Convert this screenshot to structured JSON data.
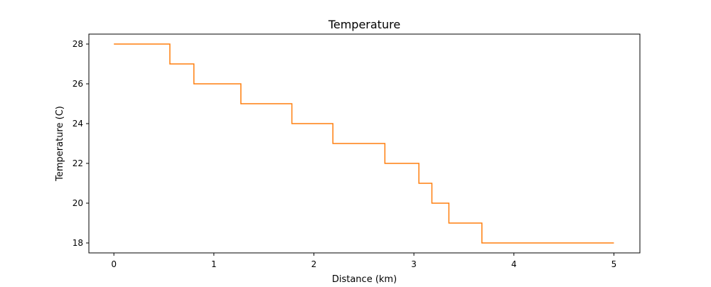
{
  "chart_data": {
    "type": "line",
    "title": "Temperature",
    "xlabel": "Distance (km)",
    "ylabel": "Temperature (C)",
    "xlim": [
      -0.25,
      5.26
    ],
    "ylim": [
      17.5,
      28.5
    ],
    "x_ticks": [
      0,
      1,
      2,
      3,
      4,
      5
    ],
    "x_tick_labels": [
      "0",
      "1",
      "2",
      "3",
      "4",
      "5"
    ],
    "y_ticks": [
      18,
      20,
      22,
      24,
      26,
      28
    ],
    "y_tick_labels": [
      "18",
      "20",
      "22",
      "24",
      "26",
      "28"
    ],
    "grid": false,
    "series": [
      {
        "color": "#ff7f0e",
        "points": [
          [
            0.0,
            28
          ],
          [
            0.56,
            28
          ],
          [
            0.56,
            27
          ],
          [
            0.8,
            27
          ],
          [
            0.8,
            26
          ],
          [
            1.27,
            26
          ],
          [
            1.27,
            25
          ],
          [
            1.78,
            25
          ],
          [
            1.78,
            24
          ],
          [
            2.19,
            24
          ],
          [
            2.19,
            23
          ],
          [
            2.71,
            23
          ],
          [
            2.71,
            22
          ],
          [
            3.05,
            22
          ],
          [
            3.05,
            21
          ],
          [
            3.18,
            21
          ],
          [
            3.18,
            20
          ],
          [
            3.35,
            20
          ],
          [
            3.35,
            19
          ],
          [
            3.68,
            19
          ],
          [
            3.68,
            18
          ],
          [
            5.0,
            18
          ]
        ]
      }
    ]
  }
}
